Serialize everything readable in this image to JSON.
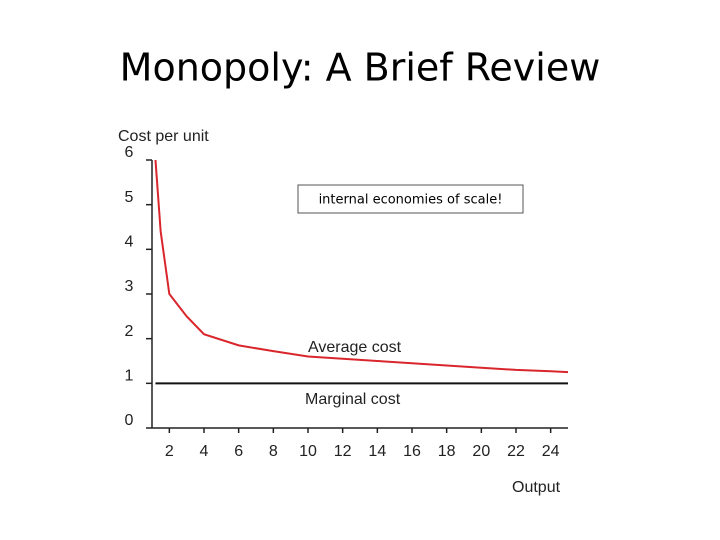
{
  "chart_data": {
    "type": "line",
    "title": "Monopoly: A Brief Review",
    "y_label": "Cost per unit",
    "x_label": "Output",
    "annotation": "internal economies of scale!",
    "x": [
      1.2,
      1.5,
      2,
      3,
      4,
      6,
      8,
      10,
      12,
      14,
      16,
      18,
      20,
      22,
      24,
      25
    ],
    "series": [
      {
        "name": "Average cost",
        "color": "#d9262c",
        "values": [
          6,
          4.4,
          3,
          2.5,
          2.1,
          1.85,
          1.72,
          1.6,
          1.55,
          1.5,
          1.45,
          1.4,
          1.35,
          1.3,
          1.27,
          1.25
        ]
      },
      {
        "name": "Marginal cost",
        "color": "#111111",
        "values": [
          1,
          1,
          1,
          1,
          1,
          1,
          1,
          1,
          1,
          1,
          1,
          1,
          1,
          1,
          1,
          1
        ]
      }
    ],
    "xlim": [
      1,
      25
    ],
    "ylim": [
      0,
      6
    ],
    "xticks": [
      2,
      4,
      6,
      8,
      10,
      12,
      14,
      16,
      18,
      20,
      22,
      24
    ],
    "yticks": [
      0,
      1,
      2,
      3,
      4,
      5,
      6
    ]
  }
}
